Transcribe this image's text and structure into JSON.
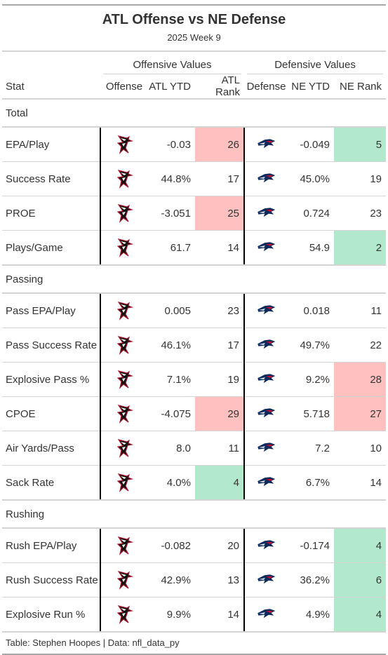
{
  "title": "ATL Offense vs NE Defense",
  "subtitle": "2025 Week 9",
  "spanners": {
    "offense": "Offensive Values",
    "defense": "Defensive Values"
  },
  "columns": [
    "Stat",
    "Offense",
    "ATL YTD",
    "ATL Rank",
    "Defense",
    "NE YTD",
    "NE Rank"
  ],
  "logos": {
    "offense": "falcons-logo-icon",
    "defense": "patriots-logo-icon"
  },
  "colors": {
    "bad": "#ffc0c0",
    "good": "#b2e8cc"
  },
  "groups": [
    {
      "name": "Total",
      "rows": [
        {
          "stat": "EPA/Play",
          "atl_ytd": "-0.03",
          "atl_rank": "26",
          "atl_rank_class": "bad",
          "ne_ytd": "-0.049",
          "ne_rank": "5",
          "ne_rank_class": "good"
        },
        {
          "stat": "Success Rate",
          "atl_ytd": "44.8%",
          "atl_rank": "17",
          "atl_rank_class": "",
          "ne_ytd": "45.0%",
          "ne_rank": "19",
          "ne_rank_class": ""
        },
        {
          "stat": "PROE",
          "atl_ytd": "-3.051",
          "atl_rank": "25",
          "atl_rank_class": "bad",
          "ne_ytd": "0.724",
          "ne_rank": "23",
          "ne_rank_class": ""
        },
        {
          "stat": "Plays/Game",
          "atl_ytd": "61.7",
          "atl_rank": "14",
          "atl_rank_class": "",
          "ne_ytd": "54.9",
          "ne_rank": "2",
          "ne_rank_class": "good"
        }
      ]
    },
    {
      "name": "Passing",
      "rows": [
        {
          "stat": "Pass EPA/Play",
          "atl_ytd": "0.005",
          "atl_rank": "23",
          "atl_rank_class": "",
          "ne_ytd": "0.018",
          "ne_rank": "11",
          "ne_rank_class": ""
        },
        {
          "stat": "Pass Success Rate",
          "atl_ytd": "46.1%",
          "atl_rank": "17",
          "atl_rank_class": "",
          "ne_ytd": "49.7%",
          "ne_rank": "22",
          "ne_rank_class": ""
        },
        {
          "stat": "Explosive Pass %",
          "atl_ytd": "7.1%",
          "atl_rank": "19",
          "atl_rank_class": "",
          "ne_ytd": "9.2%",
          "ne_rank": "28",
          "ne_rank_class": "bad"
        },
        {
          "stat": "CPOE",
          "atl_ytd": "-4.075",
          "atl_rank": "29",
          "atl_rank_class": "bad",
          "ne_ytd": "5.718",
          "ne_rank": "27",
          "ne_rank_class": "bad"
        },
        {
          "stat": "Air Yards/Pass",
          "atl_ytd": "8.0",
          "atl_rank": "11",
          "atl_rank_class": "",
          "ne_ytd": "7.2",
          "ne_rank": "10",
          "ne_rank_class": ""
        },
        {
          "stat": "Sack Rate",
          "atl_ytd": "4.0%",
          "atl_rank": "4",
          "atl_rank_class": "good",
          "ne_ytd": "6.7%",
          "ne_rank": "14",
          "ne_rank_class": ""
        }
      ]
    },
    {
      "name": "Rushing",
      "rows": [
        {
          "stat": "Rush EPA/Play",
          "atl_ytd": "-0.082",
          "atl_rank": "20",
          "atl_rank_class": "",
          "ne_ytd": "-0.174",
          "ne_rank": "4",
          "ne_rank_class": "good"
        },
        {
          "stat": "Rush Success Rate",
          "atl_ytd": "42.9%",
          "atl_rank": "13",
          "atl_rank_class": "",
          "ne_ytd": "36.2%",
          "ne_rank": "6",
          "ne_rank_class": "good"
        },
        {
          "stat": "Explosive Run %",
          "atl_ytd": "9.9%",
          "atl_rank": "14",
          "atl_rank_class": "",
          "ne_ytd": "4.9%",
          "ne_rank": "4",
          "ne_rank_class": "good"
        }
      ]
    }
  ],
  "footer": "Table: Stephen Hoopes | Data: nfl_data_py"
}
